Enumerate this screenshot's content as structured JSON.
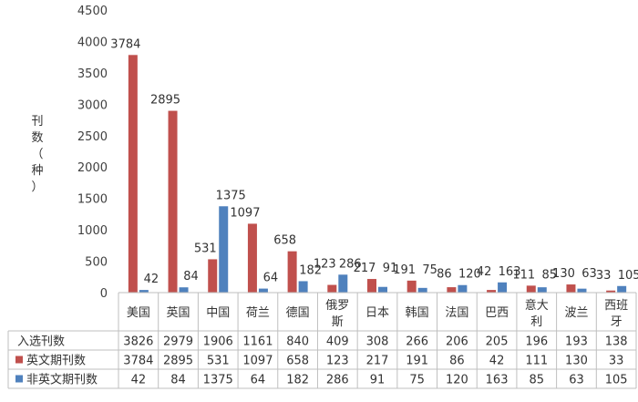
{
  "chart_data": {
    "type": "bar",
    "ylabel_chars": [
      "刊",
      "数",
      "（",
      "种",
      "）"
    ],
    "ylim": [
      0,
      4500
    ],
    "yticks": [
      0,
      500,
      1000,
      1500,
      2000,
      2500,
      3000,
      3500,
      4000,
      4500
    ],
    "categories": [
      [
        "美国"
      ],
      [
        "英国"
      ],
      [
        "中国"
      ],
      [
        "荷兰"
      ],
      [
        "德国"
      ],
      [
        "俄罗",
        "斯"
      ],
      [
        "日本"
      ],
      [
        "韩国"
      ],
      [
        "法国"
      ],
      [
        "巴西"
      ],
      [
        "意大",
        "利"
      ],
      [
        "波兰"
      ],
      [
        "西班",
        "牙"
      ]
    ],
    "series": [
      {
        "name": "英文期刊数",
        "color": "#c0504d",
        "values": [
          3784,
          2895,
          531,
          1097,
          658,
          123,
          217,
          191,
          86,
          42,
          111,
          130,
          33
        ]
      },
      {
        "name": "非英文期刊数",
        "color": "#4f81bd",
        "values": [
          42,
          84,
          1375,
          64,
          182,
          286,
          91,
          75,
          120,
          163,
          85,
          63,
          105
        ]
      }
    ],
    "table_rows": [
      {
        "name": "入选刊数",
        "color": null,
        "values": [
          3826,
          2979,
          1906,
          1161,
          840,
          409,
          308,
          266,
          206,
          205,
          196,
          193,
          138
        ]
      },
      {
        "name": "英文期刊数",
        "color": "#c0504d",
        "values": [
          3784,
          2895,
          531,
          1097,
          658,
          123,
          217,
          191,
          86,
          42,
          111,
          130,
          33
        ]
      },
      {
        "name": "非英文期刊数",
        "color": "#4f81bd",
        "values": [
          42,
          84,
          1375,
          64,
          182,
          286,
          91,
          75,
          120,
          163,
          85,
          63,
          105
        ]
      }
    ],
    "grid": false,
    "legend": "data-table"
  }
}
